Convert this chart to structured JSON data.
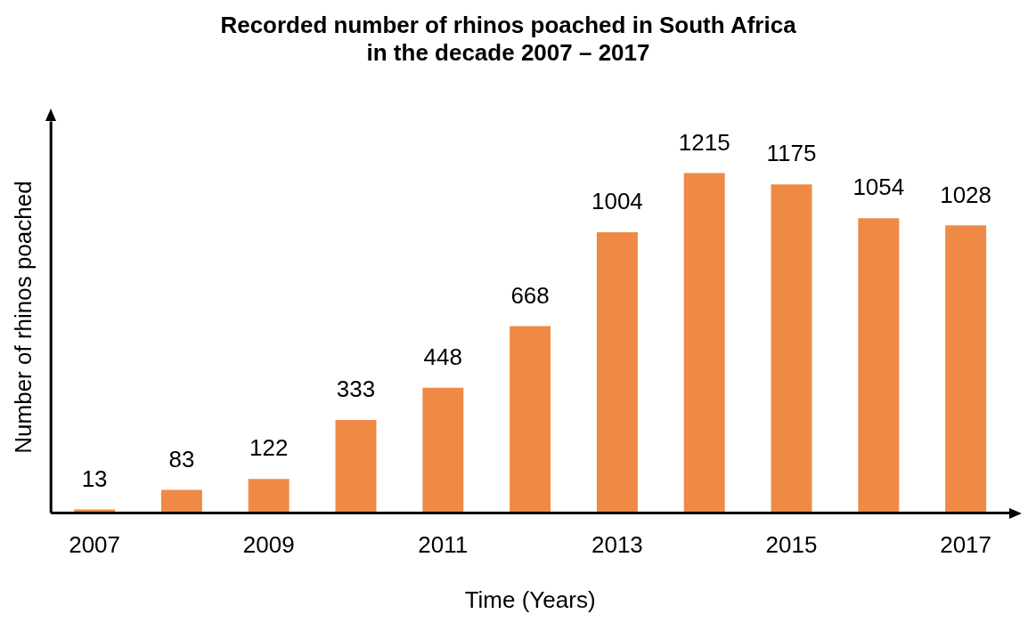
{
  "chart_data": {
    "type": "bar",
    "title": "Recorded number of rhinos poached in South Africa\nin the decade 2007 – 2017",
    "xlabel": "Time (Years)",
    "ylabel": "Number of rhinos poached",
    "categories": [
      "2007",
      null,
      "2009",
      null,
      "2011",
      null,
      "2013",
      null,
      "2015",
      null,
      "2017"
    ],
    "values": [
      13,
      83,
      122,
      333,
      448,
      668,
      1004,
      1215,
      1175,
      1054,
      1028
    ],
    "color": "#ee8a45",
    "data_labels": true,
    "tick_labels": "x",
    "grid": false,
    "legend": false
  }
}
